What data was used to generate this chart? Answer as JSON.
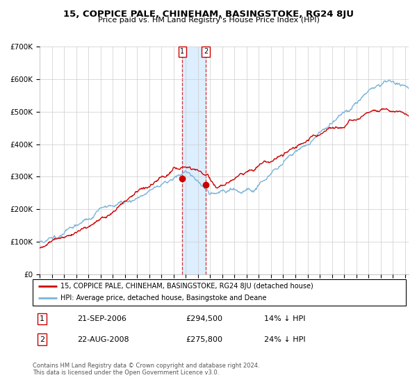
{
  "title": "15, COPPICE PALE, CHINEHAM, BASINGSTOKE, RG24 8JU",
  "subtitle": "Price paid vs. HM Land Registry's House Price Index (HPI)",
  "legend_line1": "15, COPPICE PALE, CHINEHAM, BASINGSTOKE, RG24 8JU (detached house)",
  "legend_line2": "HPI: Average price, detached house, Basingstoke and Deane",
  "transaction1_date": "21-SEP-2006",
  "transaction1_price": "£294,500",
  "transaction1_hpi": "14% ↓ HPI",
  "transaction2_date": "22-AUG-2008",
  "transaction2_price": "£275,800",
  "transaction2_hpi": "24% ↓ HPI",
  "footer": "Contains HM Land Registry data © Crown copyright and database right 2024.\nThis data is licensed under the Open Government Licence v3.0.",
  "hpi_color": "#7ab4d8",
  "price_color": "#cc0000",
  "shade_color": "#ddeeff",
  "ylim": [
    0,
    700000
  ],
  "yticks": [
    0,
    100000,
    200000,
    300000,
    400000,
    500000,
    600000,
    700000
  ],
  "ytick_labels": [
    "£0",
    "£100K",
    "£200K",
    "£300K",
    "£400K",
    "£500K",
    "£600K",
    "£700K"
  ],
  "transaction1_x": 2006.72,
  "transaction1_y": 294500,
  "transaction2_x": 2008.64,
  "transaction2_y": 275800,
  "vline1_x": 2006.72,
  "vline2_x": 2008.64,
  "xmin": 1995.0,
  "xmax": 2025.3
}
